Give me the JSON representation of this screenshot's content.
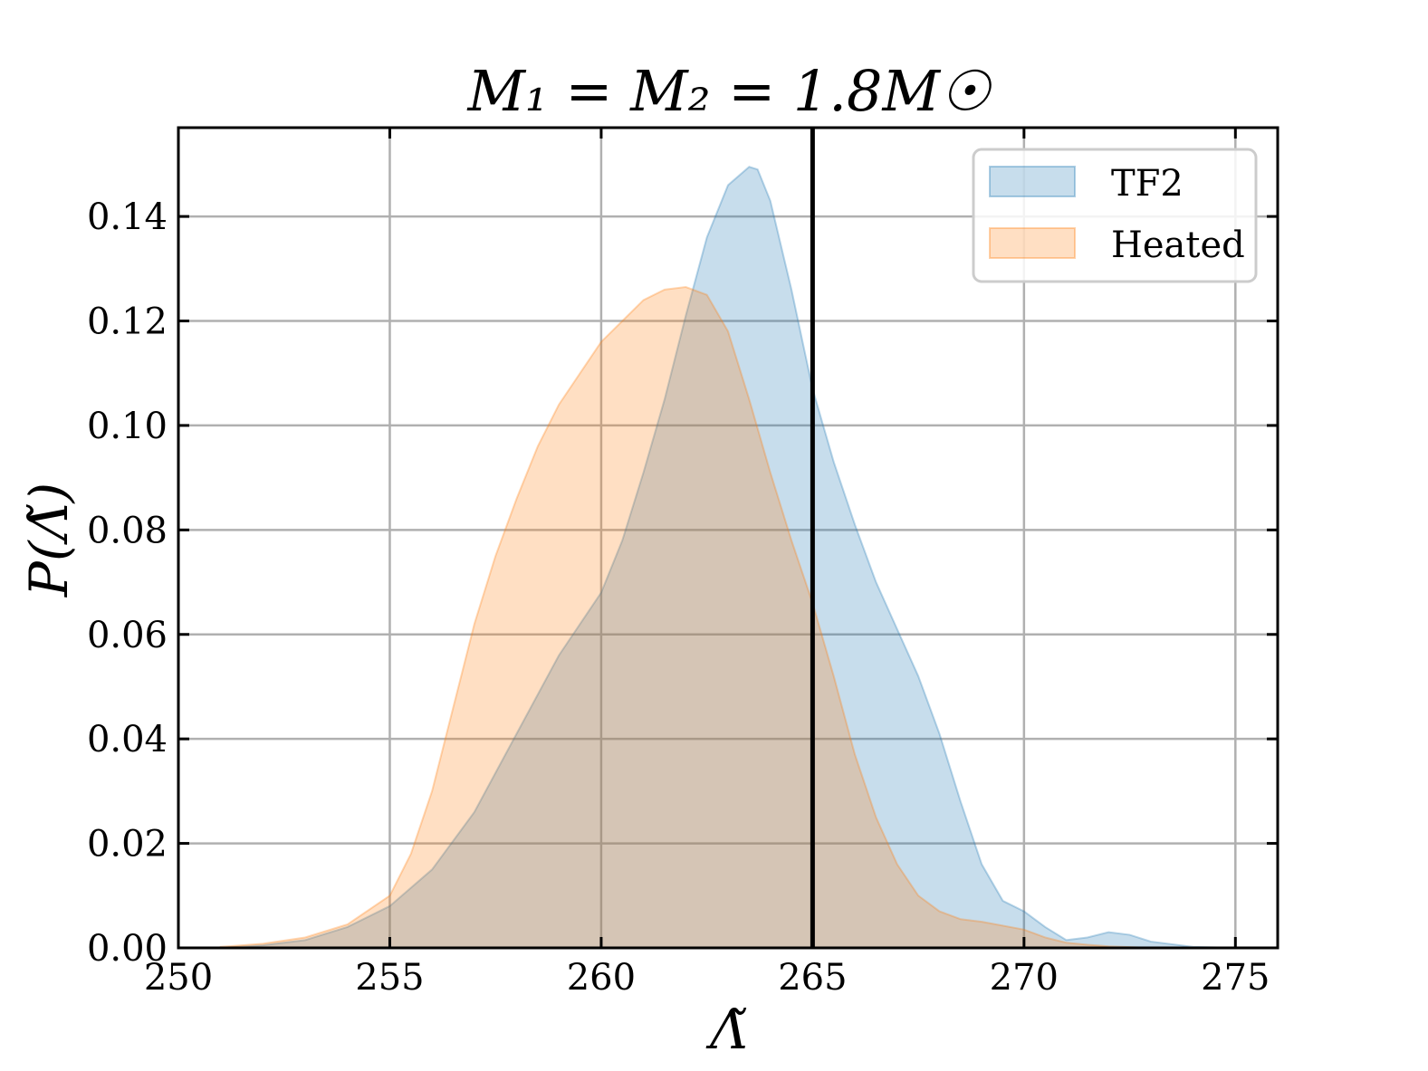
{
  "chart_data": {
    "type": "area",
    "title": "M₁ = M₂ = 1.8M☉",
    "xlabel": "Λ̃",
    "ylabel": "P(Λ̃)",
    "xlim": [
      250,
      276
    ],
    "ylim": [
      0,
      0.157
    ],
    "xticks": [
      250,
      255,
      260,
      265,
      270,
      275
    ],
    "xtick_labels": [
      "250",
      "255",
      "260",
      "265",
      "270",
      "275"
    ],
    "yticks": [
      0.0,
      0.02,
      0.04,
      0.06,
      0.08,
      0.1,
      0.12,
      0.14
    ],
    "ytick_labels": [
      "0.00",
      "0.02",
      "0.04",
      "0.06",
      "0.08",
      "0.10",
      "0.12",
      "0.14"
    ],
    "grid": true,
    "legend_position": "top-right",
    "vertical_line": {
      "x": 265,
      "color": "#000000"
    },
    "series": [
      {
        "name": "TF2",
        "color": "#1f77b4",
        "x": [
          251,
          252,
          253,
          254,
          255,
          256,
          257,
          258,
          259,
          259.5,
          260,
          260.5,
          261,
          261.5,
          262,
          262.5,
          263,
          263.5,
          263.7,
          264,
          264.5,
          265,
          265.5,
          266,
          266.5,
          267,
          267.5,
          268,
          268.5,
          269,
          269.5,
          270,
          270.5,
          271,
          271.5,
          272,
          272.5,
          273,
          274,
          275
        ],
        "values": [
          0.0,
          0.0005,
          0.0015,
          0.004,
          0.008,
          0.015,
          0.026,
          0.041,
          0.056,
          0.062,
          0.068,
          0.078,
          0.091,
          0.105,
          0.121,
          0.136,
          0.146,
          0.1495,
          0.149,
          0.143,
          0.126,
          0.107,
          0.093,
          0.081,
          0.07,
          0.061,
          0.052,
          0.041,
          0.028,
          0.016,
          0.009,
          0.007,
          0.004,
          0.0015,
          0.002,
          0.003,
          0.0025,
          0.0012,
          0.0002,
          0.0
        ]
      },
      {
        "name": "Heated",
        "color": "#ff7f0e",
        "x": [
          251,
          252,
          253,
          254,
          255,
          255.5,
          256,
          256.5,
          257,
          257.5,
          258,
          258.5,
          259,
          259.5,
          260,
          260.5,
          261,
          261.5,
          262,
          262.5,
          263,
          263.5,
          264,
          264.5,
          265,
          265.5,
          266,
          266.5,
          267,
          267.5,
          268,
          268.5,
          269,
          270,
          270.5,
          271,
          271.5,
          272,
          273
        ],
        "values": [
          0.0002,
          0.0008,
          0.002,
          0.0045,
          0.01,
          0.018,
          0.03,
          0.046,
          0.062,
          0.075,
          0.086,
          0.096,
          0.104,
          0.11,
          0.116,
          0.12,
          0.124,
          0.126,
          0.1265,
          0.125,
          0.118,
          0.105,
          0.091,
          0.078,
          0.066,
          0.052,
          0.037,
          0.025,
          0.016,
          0.01,
          0.007,
          0.0055,
          0.005,
          0.0035,
          0.002,
          0.001,
          0.0006,
          0.0003,
          0.0
        ]
      }
    ]
  }
}
